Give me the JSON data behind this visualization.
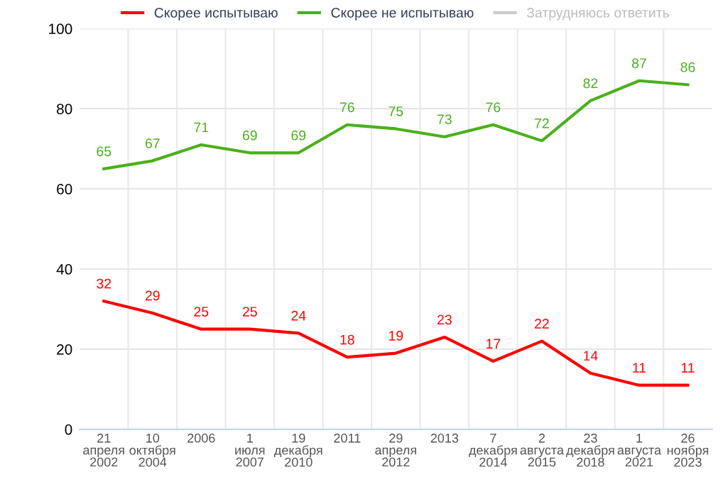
{
  "chart_data": {
    "type": "line",
    "categories": [
      "21\nапреля\n2002",
      "10\nоктября\n2004",
      "2006",
      "1\nиюля\n2007",
      "19\nдекабря\n2010",
      "2011",
      "29\nапреля\n2012",
      "2013",
      "7\nдекабря\n2014",
      "2\nавгуста\n2015",
      "23\nдекабря\n2018",
      "1\nавгуста\n2021",
      "26\nноября\n2023"
    ],
    "series": [
      {
        "name": "Скорее испытываю",
        "color": "#ff0000",
        "values": [
          32,
          29,
          25,
          25,
          24,
          18,
          19,
          23,
          17,
          22,
          14,
          11,
          11
        ]
      },
      {
        "name": "Скорее не испытываю",
        "color": "#4ab01a",
        "values": [
          65,
          67,
          71,
          69,
          69,
          76,
          75,
          73,
          76,
          72,
          82,
          87,
          86
        ]
      },
      {
        "name": "Затрудняюсь ответить",
        "color": "#cccccc",
        "values": [
          null,
          null,
          null,
          null,
          null,
          null,
          null,
          null,
          null,
          null,
          null,
          null,
          null
        ]
      }
    ],
    "ylim": [
      0,
      100
    ],
    "yticks": [
      0,
      20,
      40,
      60,
      80,
      100
    ],
    "grid": true,
    "legend": "top",
    "data_labels": true,
    "marker": "none",
    "line_style": "solid"
  }
}
